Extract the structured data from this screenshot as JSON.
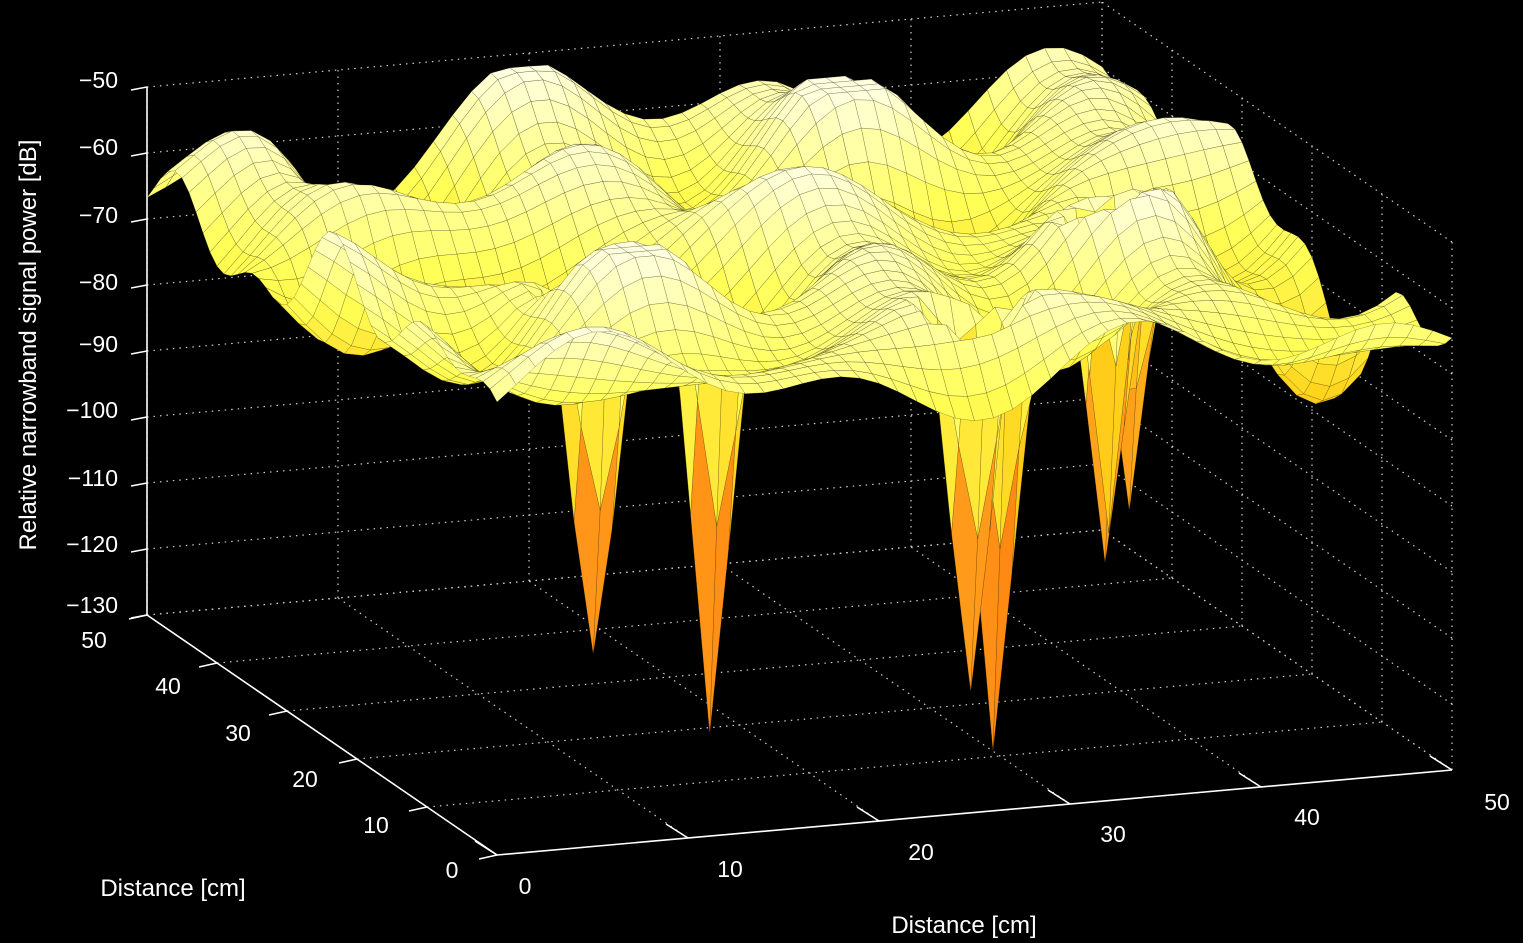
{
  "chart_data": {
    "type": "surface",
    "title": "",
    "xlabel": "Distance [cm]",
    "ylabel": "Distance [cm]",
    "zlabel": "Relative narrowband signal power [dB]",
    "x_ticks": [
      "0",
      "10",
      "20",
      "30",
      "40",
      "50"
    ],
    "y_ticks": [
      "0",
      "10",
      "20",
      "30",
      "40",
      "50"
    ],
    "z_ticks": [
      "−50",
      "−60",
      "−70",
      "−80",
      "−90",
      "−100",
      "−110",
      "−120",
      "−130"
    ],
    "xlim": [
      0,
      50
    ],
    "ylim": [
      0,
      50
    ],
    "zlim": [
      -130,
      -50
    ],
    "grid": true,
    "background_color": "#000000",
    "axis_color": "#ffffff",
    "colormap": [
      "#ff5a00",
      "#ff9a1a",
      "#ffd21a",
      "#ffff55",
      "#ffffe0"
    ],
    "surface_peak_db": -55,
    "surface_floor_db": -75,
    "notable_deep_nulls_db": [
      -122,
      -126,
      -130,
      -128,
      -118,
      -110
    ]
  }
}
